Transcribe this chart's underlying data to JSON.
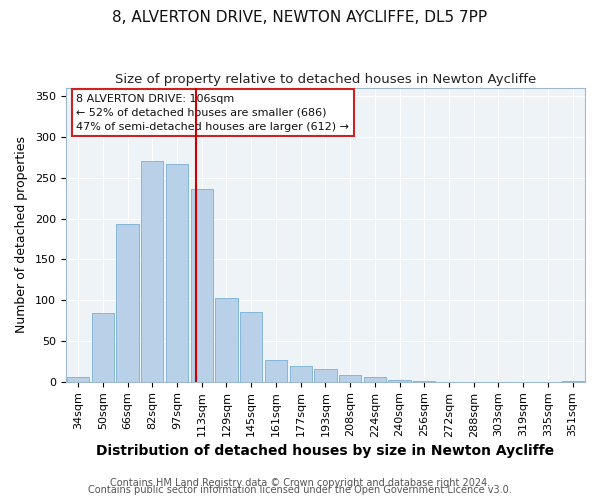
{
  "title": "8, ALVERTON DRIVE, NEWTON AYCLIFFE, DL5 7PP",
  "subtitle": "Size of property relative to detached houses in Newton Aycliffe",
  "xlabel": "Distribution of detached houses by size in Newton Aycliffe",
  "ylabel": "Number of detached properties",
  "bar_categories": [
    "34sqm",
    "50sqm",
    "66sqm",
    "82sqm",
    "97sqm",
    "113sqm",
    "129sqm",
    "145sqm",
    "161sqm",
    "177sqm",
    "193sqm",
    "208sqm",
    "224sqm",
    "240sqm",
    "256sqm",
    "272sqm",
    "288sqm",
    "303sqm",
    "319sqm",
    "335sqm",
    "351sqm"
  ],
  "bar_values": [
    6,
    84,
    193,
    270,
    267,
    236,
    103,
    85,
    27,
    19,
    15,
    8,
    6,
    2,
    1,
    0,
    0,
    0,
    0,
    0,
    1
  ],
  "bar_color": "#b8d0e8",
  "bar_edge_color": "#7aafd4",
  "vline_color": "#cc0000",
  "ylim": [
    0,
    360
  ],
  "yticks": [
    0,
    50,
    100,
    150,
    200,
    250,
    300,
    350
  ],
  "annotation_title": "8 ALVERTON DRIVE: 106sqm",
  "annotation_line1": "← 52% of detached houses are smaller (686)",
  "annotation_line2": "47% of semi-detached houses are larger (612) →",
  "footer_line1": "Contains HM Land Registry data © Crown copyright and database right 2024.",
  "footer_line2": "Contains public sector information licensed under the Open Government Licence v3.0.",
  "title_fontsize": 11,
  "subtitle_fontsize": 9.5,
  "xlabel_fontsize": 10,
  "ylabel_fontsize": 9,
  "tick_fontsize": 8,
  "annotation_fontsize": 8,
  "footer_fontsize": 7,
  "plot_bg_color": "#eef3f8",
  "grid_color": "#ffffff",
  "background_color": "#ffffff"
}
